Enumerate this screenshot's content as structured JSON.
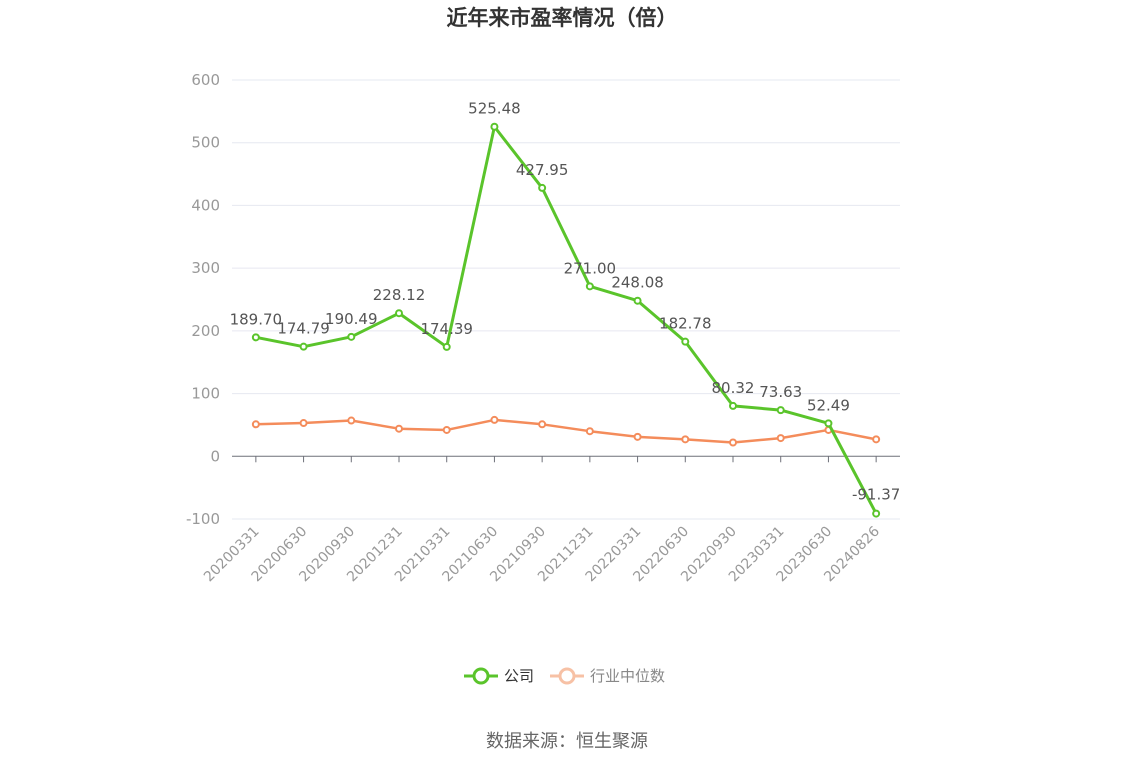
{
  "chart_data": {
    "type": "line",
    "title": "近年来市盈率情况（倍）",
    "categories": [
      "20200331",
      "20200630",
      "20200930",
      "20201231",
      "20210331",
      "20210630",
      "20210930",
      "20211231",
      "20220331",
      "20220630",
      "20220930",
      "20230331",
      "20230630",
      "20240826"
    ],
    "series": [
      {
        "name": "公司",
        "color": "#5ac42b",
        "values": [
          189.7,
          174.79,
          190.49,
          228.12,
          174.39,
          525.48,
          427.95,
          271.0,
          248.08,
          182.78,
          80.32,
          73.63,
          52.49,
          -91.37
        ],
        "labels": [
          "189.70",
          "174.79",
          "190.49",
          "228.12",
          "174.39",
          "525.48",
          "427.95",
          "271.00",
          "248.08",
          "182.78",
          "80.32",
          "73.63",
          "52.49",
          "-91.37"
        ]
      },
      {
        "name": "行业中位数",
        "color": "#f48c5b",
        "values": [
          51,
          53,
          57,
          44,
          42,
          58,
          51,
          40,
          31,
          27,
          22,
          29,
          42,
          27
        ]
      }
    ],
    "yticks": [
      "600",
      "500",
      "400",
      "300",
      "200",
      "100",
      "0",
      "-100"
    ],
    "ylim": [
      -100,
      600
    ],
    "grid": true,
    "legend_position": "bottom-center",
    "source": "数据来源：恒生聚源"
  }
}
